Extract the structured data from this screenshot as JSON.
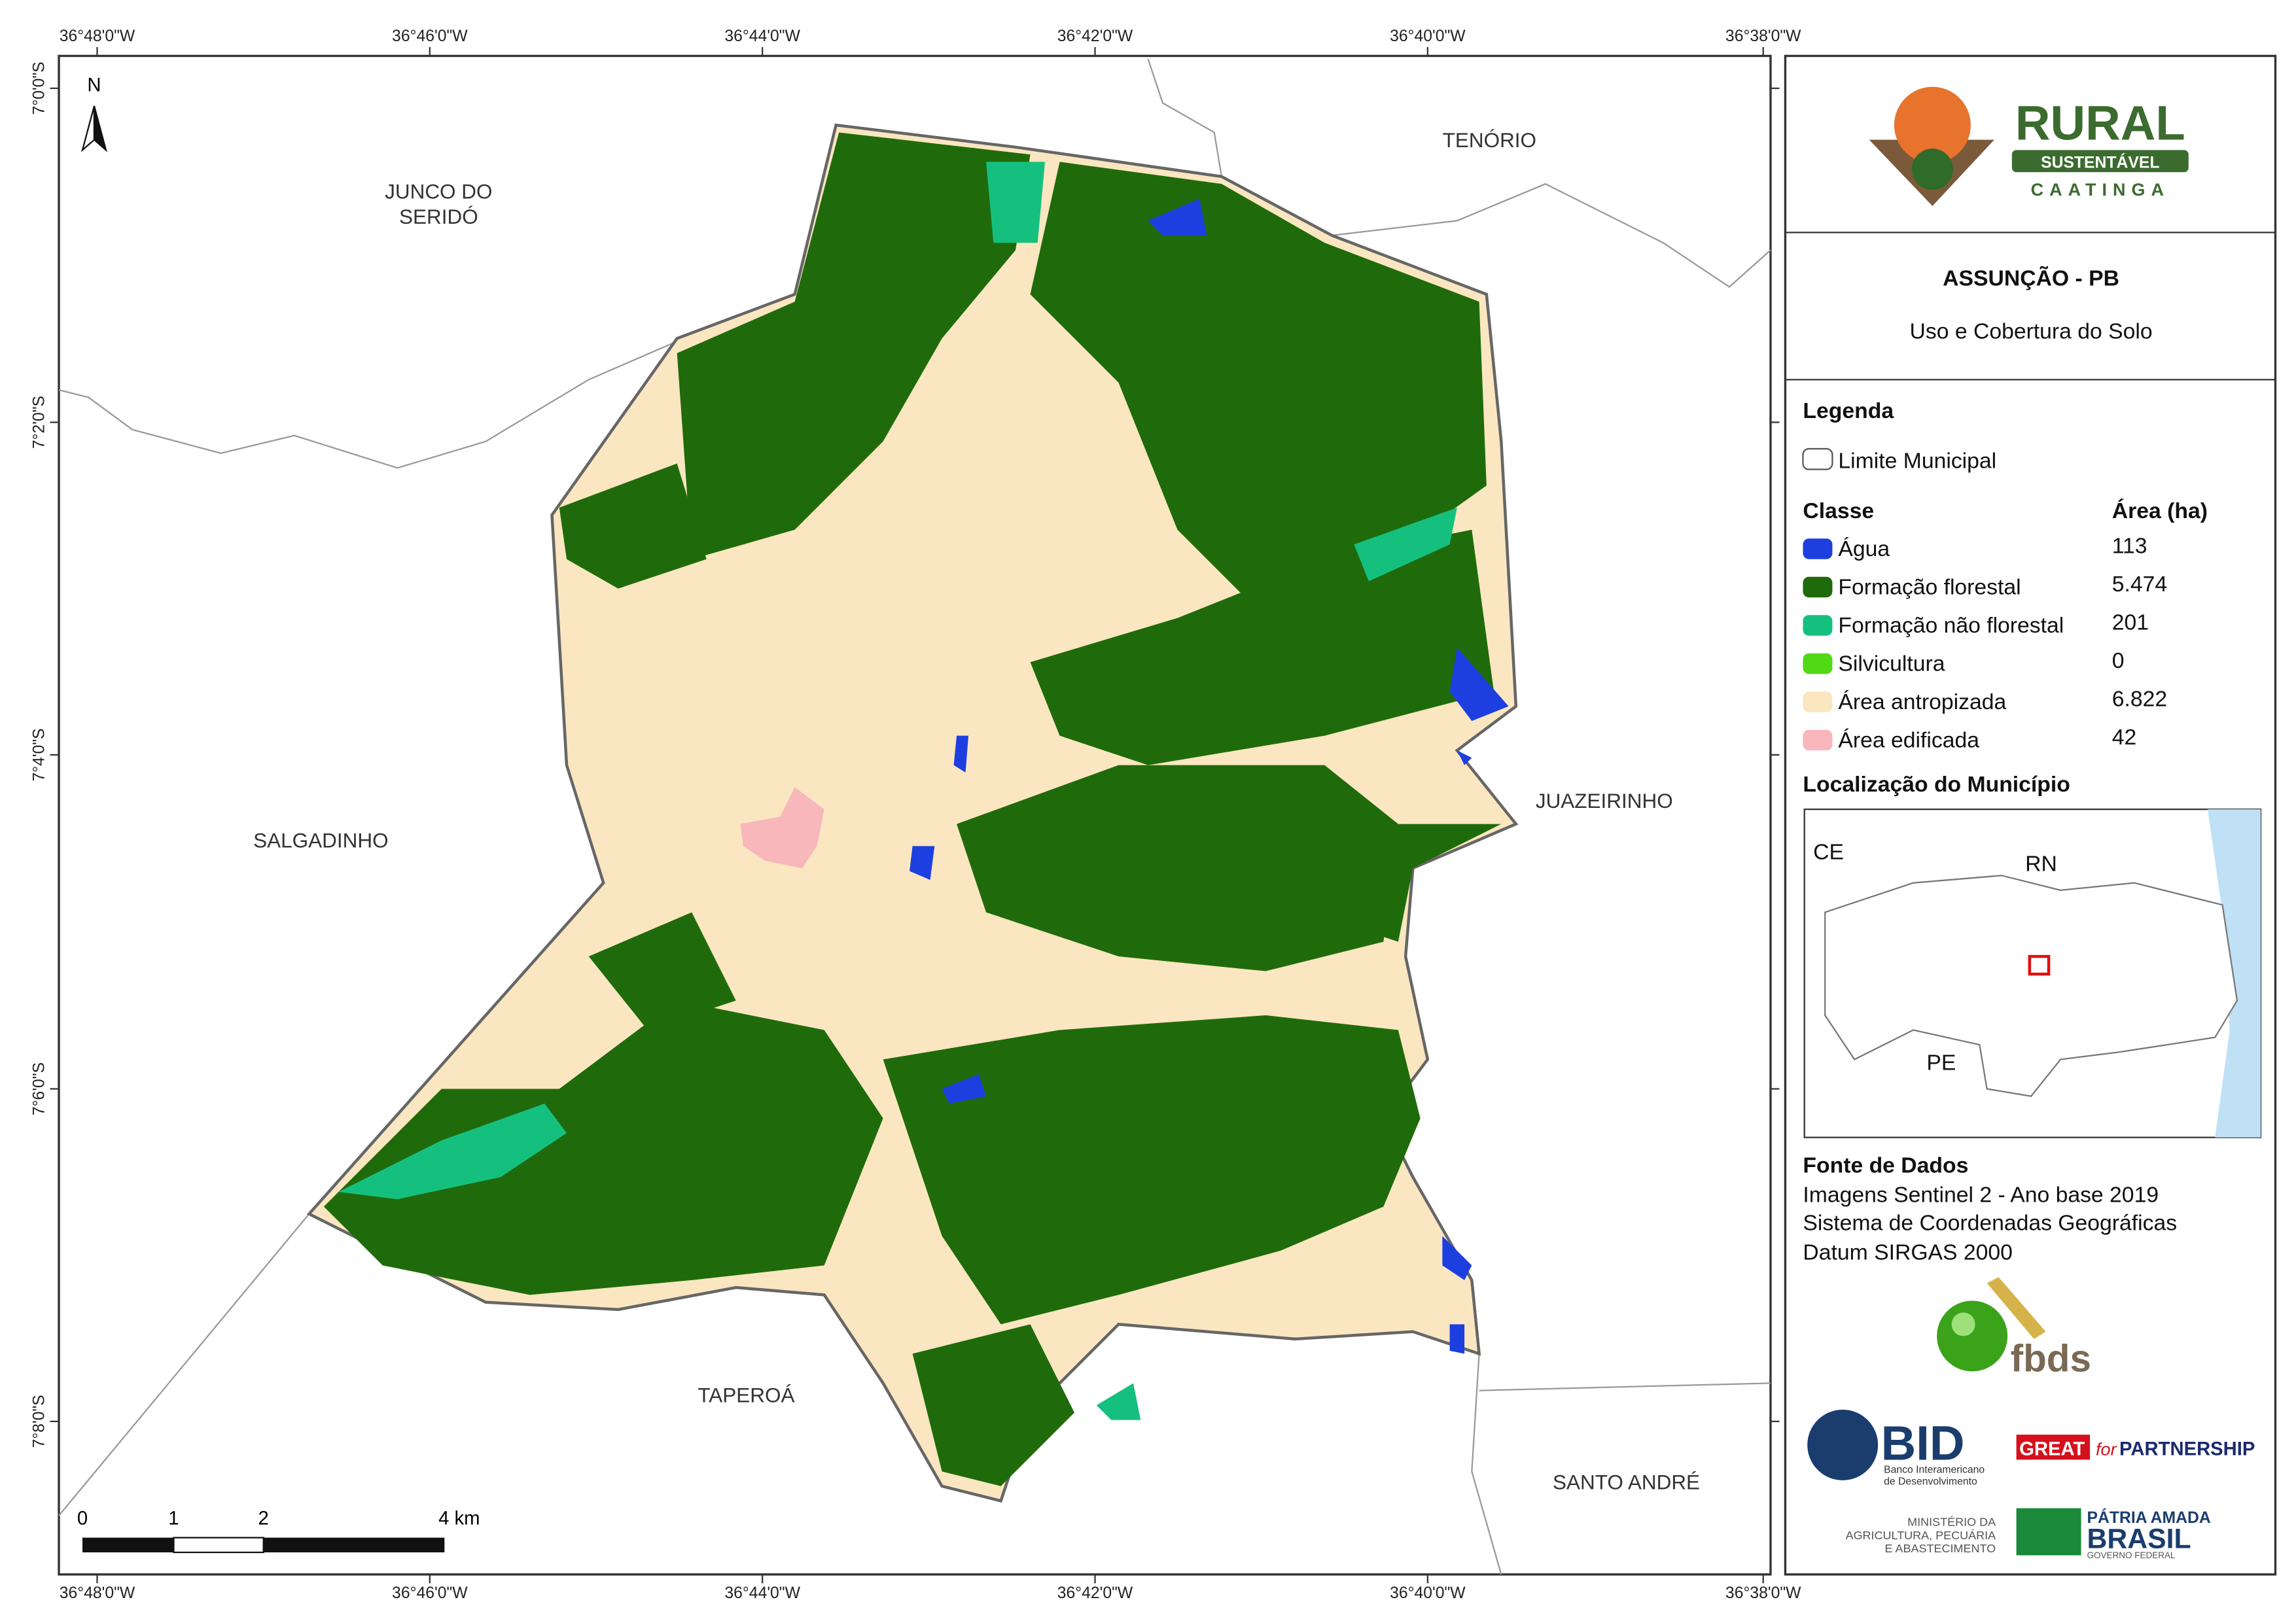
{
  "map": {
    "top_lon_labels": [
      "36°48'0\"W",
      "36°46'0\"W",
      "36°44'0\"W",
      "36°42'0\"W",
      "36°40'0\"W",
      "36°38'0\"W"
    ],
    "bottom_lon_labels": [
      "36°48'0\"W",
      "36°46'0\"W",
      "36°44'0\"W",
      "36°42'0\"W",
      "36°40'0\"W",
      "36°38'0\"W"
    ],
    "lat_labels": [
      "7°0'0\"S",
      "7°2'0\"S",
      "7°4'0\"S",
      "7°6'0\"S",
      "7°8'0\"S"
    ],
    "north": "N",
    "places": {
      "tenorio": "TENÓRIO",
      "junco": [
        "JUNCO DO",
        "SERIDÓ"
      ],
      "salgadinho": "SALGADINHO",
      "juazeirinho": "JUAZEIRINHO",
      "taperoa": "TAPEROÁ",
      "santo_andre": "SANTO ANDRÉ"
    },
    "scale_labels": [
      "0",
      "1",
      "2",
      "4 km"
    ]
  },
  "panel": {
    "logo": {
      "line1": "RURAL",
      "line2": "SUSTENTÁVEL",
      "line3": "CAATINGA"
    },
    "title": "ASSUNÇÃO - PB",
    "subtitle": "Uso e Cobertura do Solo",
    "legend": {
      "heading": "Legenda",
      "boundary": "Limite Municipal",
      "class_header": "Classe",
      "area_header": "Área (ha)",
      "classes": [
        {
          "name": "Água",
          "area": "113",
          "color": "#1d3fe0"
        },
        {
          "name": "Formação florestal",
          "area": "5.474",
          "color": "#1f6b0b"
        },
        {
          "name": "Formação não florestal",
          "area": "201",
          "color": "#15c07f"
        },
        {
          "name": "Silvicultura",
          "area": "0",
          "color": "#52d915"
        },
        {
          "name": "Área antropizada",
          "area": "6.822",
          "color": "#fae6c0"
        },
        {
          "name": "Área edificada",
          "area": "42",
          "color": "#f7b7bb"
        }
      ]
    },
    "location": {
      "heading": "Localização do Município",
      "labels": [
        "CE",
        "RN",
        "PE"
      ]
    },
    "sources": {
      "heading": "Fonte de Dados",
      "lines": [
        "Imagens Sentinel 2 - Ano base 2019",
        "Sistema de Coordenadas Geográficas",
        "Datum SIRGAS 2000"
      ]
    },
    "partners": {
      "fbds": "fbds",
      "bid": "BID",
      "bid_sub": [
        "Banco Interamericano",
        "de Desenvolvimento"
      ],
      "great": "GREAT",
      "for": "for",
      "partnership": "PARTNERSHIP",
      "ministry": [
        "MINISTÉRIO DA",
        "AGRICULTURA, PECUÁRIA",
        "E ABASTECIMENTO"
      ],
      "patria": "PÁTRIA AMADA",
      "brasil": "BRASIL",
      "gov": "GOVERNO FEDERAL"
    }
  }
}
